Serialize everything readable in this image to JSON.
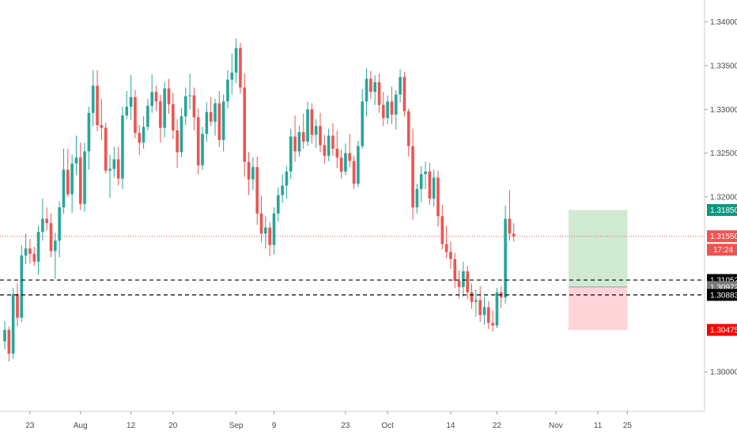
{
  "chart_data": {
    "type": "candlestick",
    "title": "",
    "xlabel": "",
    "ylabel": "",
    "ylim": [
      1.2955,
      1.3425
    ],
    "grid": false,
    "colors": {
      "up": "#26a69a",
      "down": "#ef5350",
      "price_line": "#ef5350",
      "axis_text": "#4a4a4a",
      "long_zone_profit": "#c8e6c9",
      "long_zone_loss": "#ffcdd2",
      "dashed_level": "#000000"
    },
    "y_ticks": [
      {
        "value": 1.34,
        "label": "1.34000"
      },
      {
        "value": 1.335,
        "label": "1.33500"
      },
      {
        "value": 1.33,
        "label": "1.33000"
      },
      {
        "value": 1.325,
        "label": "1.32500"
      },
      {
        "value": 1.32,
        "label": "1.32000"
      },
      {
        "value": 1.3,
        "label": "1.30000"
      }
    ],
    "x_ticks": [
      {
        "i": 6,
        "label": "23"
      },
      {
        "i": 18,
        "label": "Aug"
      },
      {
        "i": 30,
        "label": "12"
      },
      {
        "i": 40,
        "label": "20"
      },
      {
        "i": 55,
        "label": "Sep"
      },
      {
        "i": 64,
        "label": "9"
      },
      {
        "i": 81,
        "label": "23"
      },
      {
        "i": 91,
        "label": "Oct"
      },
      {
        "i": 106,
        "label": "14"
      },
      {
        "i": 117,
        "label": "22"
      },
      {
        "i": 131,
        "label": "Nov"
      },
      {
        "i": 141,
        "label": "11"
      },
      {
        "i": 148,
        "label": "25"
      }
    ],
    "price_labels": [
      {
        "value": 1.3185,
        "label": "1.31850",
        "bg": "#089981",
        "color": "#ffffff"
      },
      {
        "value": 1.3155,
        "label": "1.31550",
        "bg": "#ef5350",
        "color": "#ffffff"
      },
      {
        "value": 1.3105,
        "label": "1.31052",
        "bg": "#000000",
        "color": "#ffffff"
      },
      {
        "value": 1.3097,
        "label": "1.30972",
        "bg": "#7a7a7a",
        "color": "#ffffff"
      },
      {
        "value": 1.3088,
        "label": "1.30883",
        "bg": "#000000",
        "color": "#ffffff"
      },
      {
        "value": 1.3048,
        "label": "1.30475",
        "bg": "#ff0000",
        "color": "#ffffff"
      }
    ],
    "countdown": "17:24",
    "current_price": 1.3155,
    "dashed_levels": [
      1.3105,
      1.3088
    ],
    "position_tool": {
      "type": "long",
      "entry": 1.3097,
      "target": 1.3185,
      "stop": 1.3048,
      "start_i": 134,
      "end_i": 148
    },
    "candles": [
      [
        1.3035,
        1.3058,
        1.3026,
        1.3048
      ],
      [
        1.3048,
        1.3052,
        1.3012,
        1.3021
      ],
      [
        1.3021,
        1.3096,
        1.3015,
        1.3089
      ],
      [
        1.3089,
        1.3101,
        1.3052,
        1.3062
      ],
      [
        1.3062,
        1.3145,
        1.3057,
        1.3133
      ],
      [
        1.3133,
        1.3158,
        1.3123,
        1.3141
      ],
      [
        1.3141,
        1.3152,
        1.3124,
        1.3135
      ],
      [
        1.3135,
        1.3143,
        1.3121,
        1.3126
      ],
      [
        1.3126,
        1.3167,
        1.3111,
        1.316
      ],
      [
        1.316,
        1.3198,
        1.315,
        1.3175
      ],
      [
        1.3175,
        1.3188,
        1.3162,
        1.317
      ],
      [
        1.317,
        1.3181,
        1.3131,
        1.3138
      ],
      [
        1.3138,
        1.3159,
        1.3106,
        1.315
      ],
      [
        1.315,
        1.3195,
        1.3131,
        1.3188
      ],
      [
        1.3188,
        1.3255,
        1.3181,
        1.3231
      ],
      [
        1.3231,
        1.3255,
        1.32,
        1.3203
      ],
      [
        1.3203,
        1.3248,
        1.3182,
        1.3238
      ],
      [
        1.3238,
        1.327,
        1.3225,
        1.3245
      ],
      [
        1.3245,
        1.3262,
        1.3185,
        1.3192
      ],
      [
        1.3192,
        1.3262,
        1.3183,
        1.3252
      ],
      [
        1.3252,
        1.3303,
        1.3231,
        1.3296
      ],
      [
        1.3296,
        1.3345,
        1.3281,
        1.3327
      ],
      [
        1.3327,
        1.3345,
        1.3275,
        1.3282
      ],
      [
        1.3282,
        1.3312,
        1.3265,
        1.3279
      ],
      [
        1.3279,
        1.3285,
        1.3227,
        1.323
      ],
      [
        1.323,
        1.3248,
        1.3199,
        1.3232
      ],
      [
        1.3232,
        1.3257,
        1.3222,
        1.3243
      ],
      [
        1.3243,
        1.3257,
        1.3213,
        1.3221
      ],
      [
        1.3221,
        1.3303,
        1.3209,
        1.3293
      ],
      [
        1.3293,
        1.3321,
        1.3289,
        1.3303
      ],
      [
        1.3303,
        1.3339,
        1.3288,
        1.3314
      ],
      [
        1.3314,
        1.3322,
        1.3267,
        1.3273
      ],
      [
        1.3273,
        1.3282,
        1.3248,
        1.3262
      ],
      [
        1.3262,
        1.3292,
        1.3255,
        1.328
      ],
      [
        1.328,
        1.3312,
        1.3276,
        1.3304
      ],
      [
        1.3304,
        1.334,
        1.3296,
        1.332
      ],
      [
        1.332,
        1.3327,
        1.3298,
        1.3309
      ],
      [
        1.3309,
        1.3317,
        1.3262,
        1.3279
      ],
      [
        1.3279,
        1.3331,
        1.3268,
        1.3324
      ],
      [
        1.3324,
        1.3335,
        1.3295,
        1.3306
      ],
      [
        1.3306,
        1.3319,
        1.3266,
        1.3276
      ],
      [
        1.3276,
        1.3289,
        1.3233,
        1.3251
      ],
      [
        1.3251,
        1.3302,
        1.3245,
        1.3292
      ],
      [
        1.3292,
        1.3325,
        1.3282,
        1.3315
      ],
      [
        1.3315,
        1.3341,
        1.33,
        1.3316
      ],
      [
        1.3316,
        1.3325,
        1.3276,
        1.3291
      ],
      [
        1.3291,
        1.3301,
        1.3226,
        1.3236
      ],
      [
        1.3236,
        1.328,
        1.3231,
        1.3272
      ],
      [
        1.3272,
        1.3308,
        1.3263,
        1.3297
      ],
      [
        1.3297,
        1.3314,
        1.3281,
        1.3286
      ],
      [
        1.3286,
        1.3312,
        1.327,
        1.3307
      ],
      [
        1.3307,
        1.3321,
        1.3257,
        1.3265
      ],
      [
        1.3265,
        1.3317,
        1.3252,
        1.3309
      ],
      [
        1.3309,
        1.3345,
        1.3301,
        1.3334
      ],
      [
        1.3334,
        1.3364,
        1.3317,
        1.3342
      ],
      [
        1.3342,
        1.3381,
        1.333,
        1.337
      ],
      [
        1.337,
        1.3376,
        1.3318,
        1.3325
      ],
      [
        1.3325,
        1.3341,
        1.3223,
        1.324
      ],
      [
        1.324,
        1.3251,
        1.3202,
        1.322
      ],
      [
        1.322,
        1.3245,
        1.3208,
        1.3234
      ],
      [
        1.3234,
        1.3246,
        1.3168,
        1.3181
      ],
      [
        1.3181,
        1.3201,
        1.3148,
        1.3158
      ],
      [
        1.3158,
        1.3178,
        1.3141,
        1.3165
      ],
      [
        1.3165,
        1.3171,
        1.3132,
        1.3145
      ],
      [
        1.3145,
        1.3188,
        1.3134,
        1.3181
      ],
      [
        1.3181,
        1.3211,
        1.3172,
        1.3202
      ],
      [
        1.3202,
        1.3226,
        1.3193,
        1.3213
      ],
      [
        1.3213,
        1.3235,
        1.3198,
        1.3229
      ],
      [
        1.3229,
        1.3278,
        1.322,
        1.3269
      ],
      [
        1.3269,
        1.3293,
        1.324,
        1.3252
      ],
      [
        1.3252,
        1.3281,
        1.3246,
        1.3274
      ],
      [
        1.3274,
        1.3295,
        1.3255,
        1.3263
      ],
      [
        1.3263,
        1.3309,
        1.3258,
        1.33
      ],
      [
        1.33,
        1.3307,
        1.3261,
        1.3271
      ],
      [
        1.3271,
        1.3289,
        1.3256,
        1.3281
      ],
      [
        1.3281,
        1.3296,
        1.3251,
        1.3259
      ],
      [
        1.3259,
        1.3271,
        1.3238,
        1.3247
      ],
      [
        1.3247,
        1.3278,
        1.3241,
        1.327
      ],
      [
        1.327,
        1.3284,
        1.3247,
        1.3255
      ],
      [
        1.3255,
        1.3276,
        1.3233,
        1.3245
      ],
      [
        1.3245,
        1.3254,
        1.3221,
        1.3229
      ],
      [
        1.3229,
        1.3261,
        1.3225,
        1.325
      ],
      [
        1.325,
        1.3272,
        1.3234,
        1.3241
      ],
      [
        1.3241,
        1.3247,
        1.3209,
        1.3215
      ],
      [
        1.3215,
        1.3264,
        1.3211,
        1.3258
      ],
      [
        1.3258,
        1.3323,
        1.3255,
        1.3309
      ],
      [
        1.3309,
        1.3347,
        1.3292,
        1.3335
      ],
      [
        1.3335,
        1.3344,
        1.3312,
        1.332
      ],
      [
        1.332,
        1.3339,
        1.3305,
        1.3331
      ],
      [
        1.3331,
        1.3341,
        1.3296,
        1.3305
      ],
      [
        1.3305,
        1.332,
        1.3281,
        1.329
      ],
      [
        1.329,
        1.3316,
        1.3283,
        1.3309
      ],
      [
        1.3309,
        1.3326,
        1.3283,
        1.3294
      ],
      [
        1.3294,
        1.3322,
        1.3277,
        1.3317
      ],
      [
        1.3317,
        1.3346,
        1.3308,
        1.3337
      ],
      [
        1.3337,
        1.3343,
        1.3292,
        1.3298
      ],
      [
        1.3298,
        1.3301,
        1.3246,
        1.3258
      ],
      [
        1.3258,
        1.3278,
        1.3174,
        1.3188
      ],
      [
        1.3188,
        1.3215,
        1.3181,
        1.3209
      ],
      [
        1.3209,
        1.3235,
        1.3194,
        1.3226
      ],
      [
        1.3226,
        1.324,
        1.3209,
        1.3229
      ],
      [
        1.3229,
        1.3239,
        1.3191,
        1.3198
      ],
      [
        1.3198,
        1.3231,
        1.3189,
        1.3222
      ],
      [
        1.3222,
        1.323,
        1.3166,
        1.3178
      ],
      [
        1.3178,
        1.3191,
        1.314,
        1.3146
      ],
      [
        1.3146,
        1.3167,
        1.313,
        1.3137
      ],
      [
        1.3137,
        1.3149,
        1.3118,
        1.3129
      ],
      [
        1.3129,
        1.3136,
        1.3096,
        1.3104
      ],
      [
        1.3104,
        1.3116,
        1.3084,
        1.3097
      ],
      [
        1.3097,
        1.3126,
        1.3086,
        1.3115
      ],
      [
        1.3115,
        1.3121,
        1.3083,
        1.3091
      ],
      [
        1.3091,
        1.3101,
        1.3072,
        1.308
      ],
      [
        1.308,
        1.3094,
        1.3063,
        1.3082
      ],
      [
        1.3082,
        1.3098,
        1.3057,
        1.3065
      ],
      [
        1.3065,
        1.3086,
        1.3054,
        1.3074
      ],
      [
        1.3074,
        1.3081,
        1.3049,
        1.3056
      ],
      [
        1.3056,
        1.307,
        1.3046,
        1.3053
      ],
      [
        1.3053,
        1.3096,
        1.305,
        1.3091
      ],
      [
        1.3091,
        1.3098,
        1.3073,
        1.3085
      ],
      [
        1.3085,
        1.319,
        1.3078,
        1.3175
      ],
      [
        1.3175,
        1.3208,
        1.315,
        1.3158
      ],
      [
        1.3158,
        1.317,
        1.3149,
        1.3155
      ]
    ]
  }
}
